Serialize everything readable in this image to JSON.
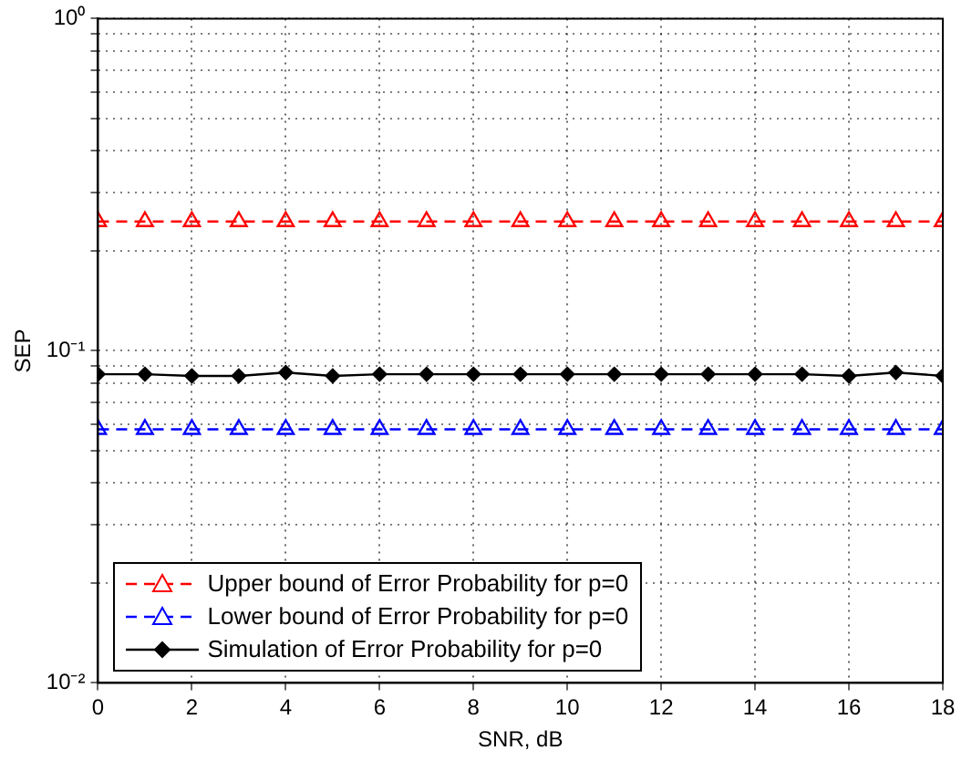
{
  "chart_data": {
    "type": "line",
    "xlabel": "SNR, dB",
    "ylabel": "SEP",
    "x": [
      0,
      1,
      2,
      3,
      4,
      5,
      6,
      7,
      8,
      9,
      10,
      11,
      12,
      13,
      14,
      15,
      16,
      17,
      18
    ],
    "xlim": [
      0,
      18
    ],
    "xticks": [
      0,
      2,
      4,
      6,
      8,
      10,
      12,
      14,
      16,
      18
    ],
    "ylim": [
      0.01,
      1
    ],
    "log": true,
    "yticks": [
      {
        "value": 0.01,
        "label": "10⁻²"
      },
      {
        "value": 0.02,
        "label": null
      },
      {
        "value": 0.03,
        "label": null
      },
      {
        "value": 0.04,
        "label": null
      },
      {
        "value": 0.05,
        "label": null
      },
      {
        "value": 0.06,
        "label": null
      },
      {
        "value": 0.07,
        "label": null
      },
      {
        "value": 0.08,
        "label": null
      },
      {
        "value": 0.09,
        "label": null
      },
      {
        "value": 0.1,
        "label": "10⁻¹"
      },
      {
        "value": 0.2,
        "label": null
      },
      {
        "value": 0.3,
        "label": null
      },
      {
        "value": 0.4,
        "label": null
      },
      {
        "value": 0.5,
        "label": null
      },
      {
        "value": 0.6,
        "label": null
      },
      {
        "value": 0.7,
        "label": null
      },
      {
        "value": 0.8,
        "label": null
      },
      {
        "value": 0.9,
        "label": null
      },
      {
        "value": 1,
        "label": "10⁰"
      }
    ],
    "grid": true,
    "legend": "bottom left",
    "series": [
      {
        "name": "Upper bound of Error Probability for p=0",
        "color": "#ff0000",
        "marker": "triangle",
        "line_style": "dashed",
        "values": [
          0.245,
          0.245,
          0.245,
          0.245,
          0.245,
          0.245,
          0.245,
          0.245,
          0.245,
          0.245,
          0.245,
          0.245,
          0.245,
          0.245,
          0.245,
          0.245,
          0.245,
          0.245,
          0.245
        ]
      },
      {
        "name": "Lower bound of Error Probability for p=0",
        "color": "#0000ff",
        "marker": "triangle",
        "line_style": "dashed",
        "values": [
          0.058,
          0.058,
          0.058,
          0.058,
          0.058,
          0.058,
          0.058,
          0.058,
          0.058,
          0.058,
          0.058,
          0.058,
          0.058,
          0.058,
          0.058,
          0.058,
          0.058,
          0.058,
          0.058
        ]
      },
      {
        "name": "Simulation of Error Probability for p=0",
        "color": "#000000",
        "marker": "diamond",
        "line_style": "solid",
        "values": [
          0.085,
          0.085,
          0.084,
          0.084,
          0.086,
          0.084,
          0.085,
          0.085,
          0.085,
          0.085,
          0.085,
          0.085,
          0.085,
          0.085,
          0.085,
          0.085,
          0.084,
          0.086,
          0.084
        ]
      }
    ]
  }
}
